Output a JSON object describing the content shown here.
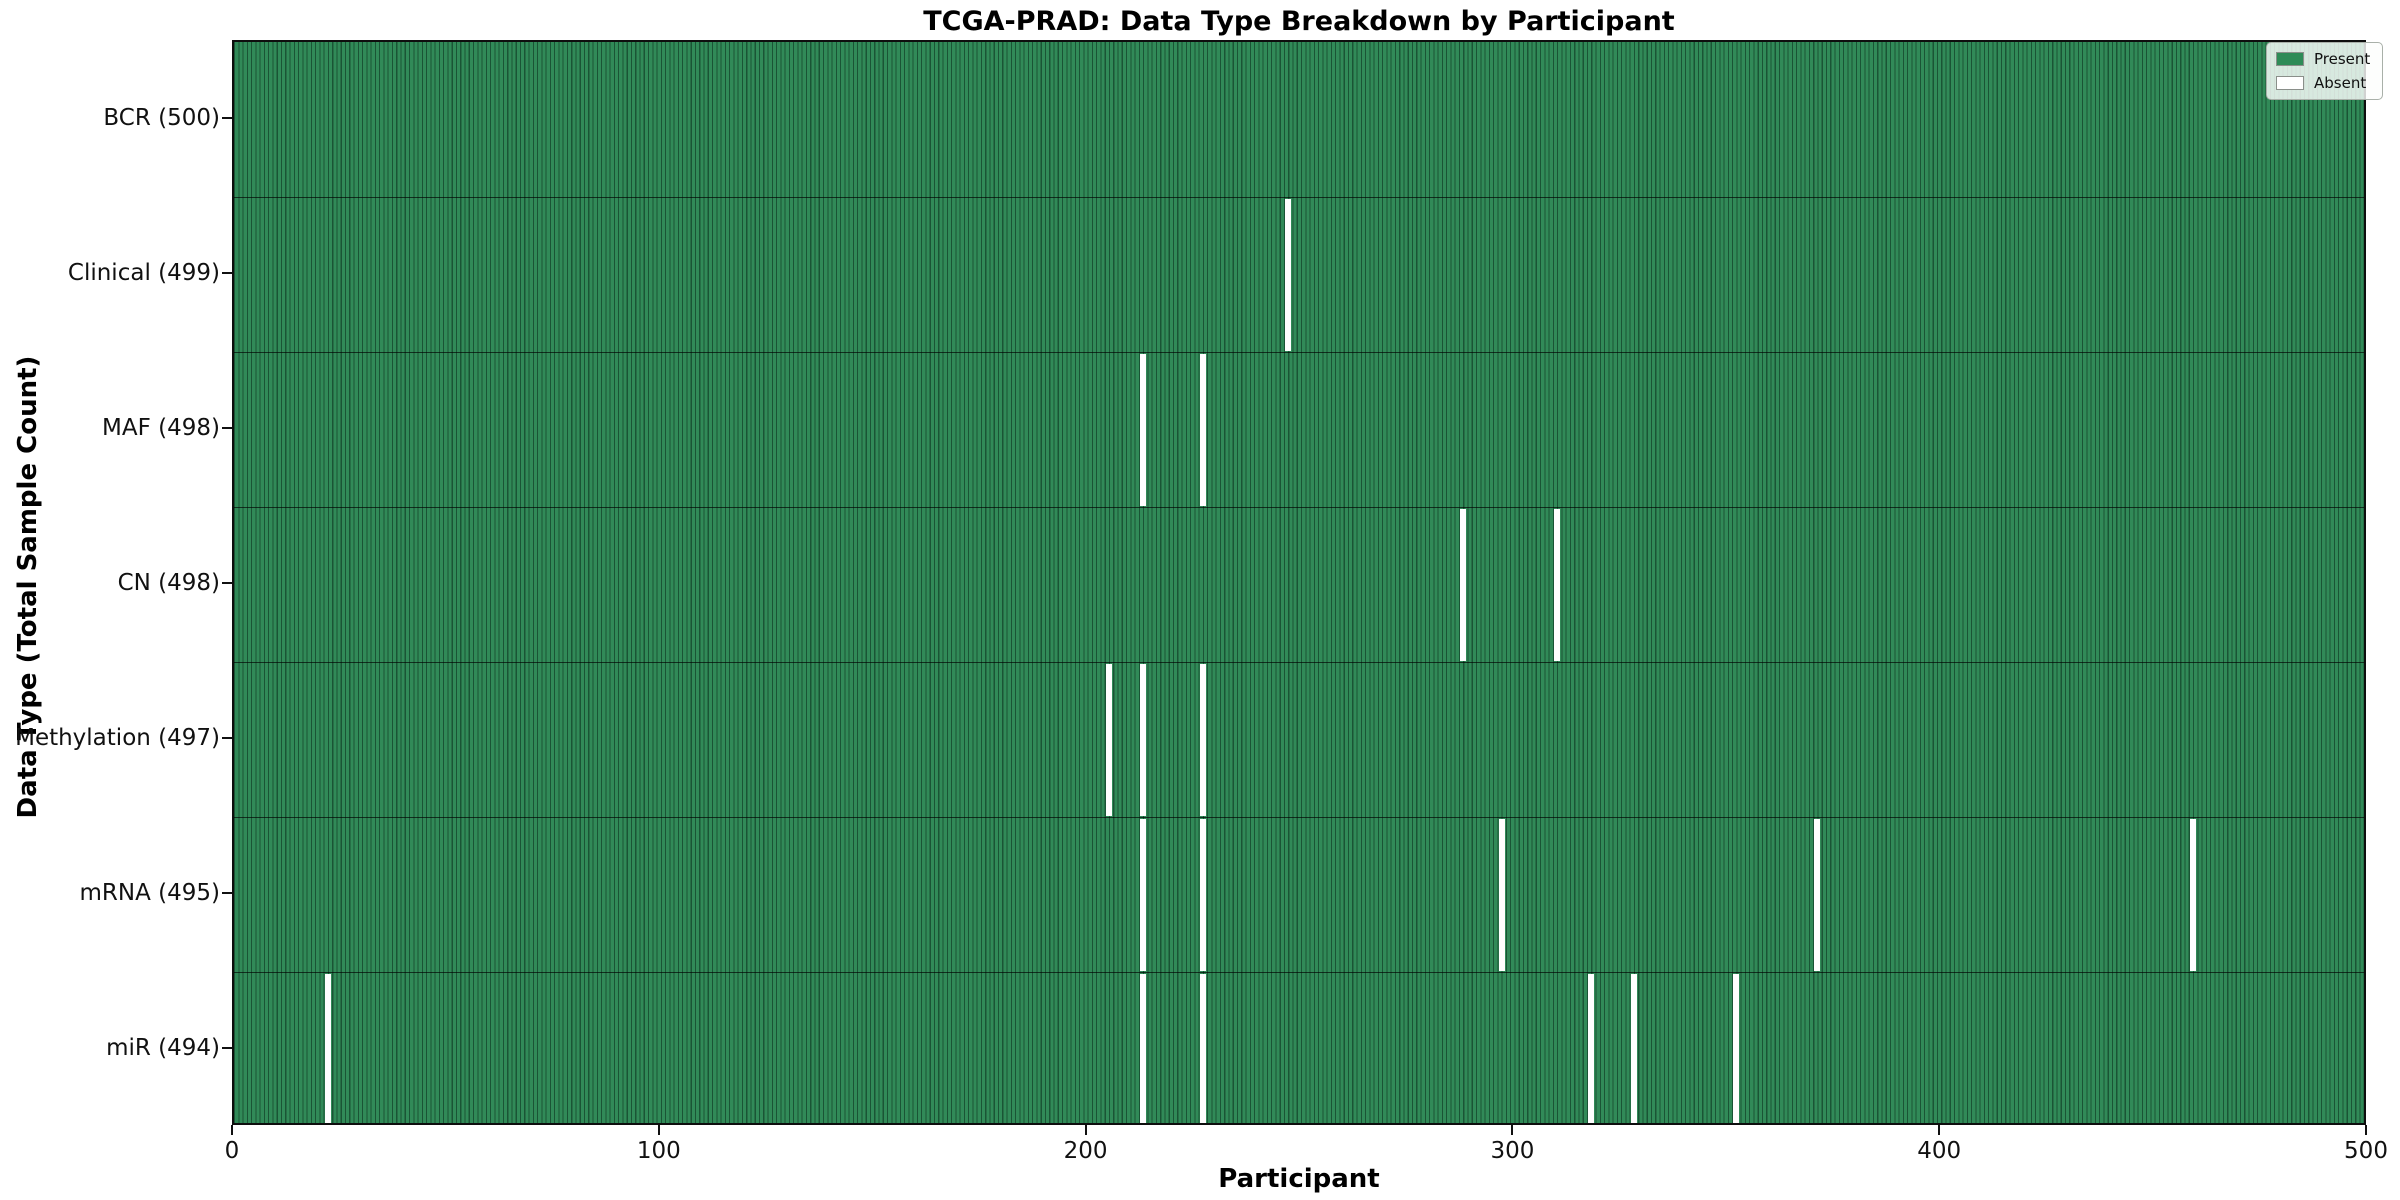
{
  "chart_data": {
    "type": "heatmap",
    "title": "TCGA-PRAD: Data Type Breakdown by Participant",
    "xlabel": "Participant",
    "ylabel": "Data Type (Total Sample Count)",
    "xlim": [
      0,
      500
    ],
    "x_ticks": [
      0,
      100,
      200,
      300,
      400,
      500
    ],
    "n_participants": 500,
    "grid": false,
    "legend_position": "upper right",
    "legend": [
      {
        "label": "Present",
        "color": "#2e8b57"
      },
      {
        "label": "Absent",
        "color": "#ffffff"
      }
    ],
    "rows": [
      {
        "label": "BCR (500)",
        "data_type": "BCR",
        "total_sample_count": 500,
        "absent_participants": []
      },
      {
        "label": "Clinical (499)",
        "data_type": "Clinical",
        "total_sample_count": 499,
        "absent_participants": [
          247
        ]
      },
      {
        "label": "MAF (498)",
        "data_type": "MAF",
        "total_sample_count": 498,
        "absent_participants": [
          213,
          227
        ]
      },
      {
        "label": "CN (498)",
        "data_type": "CN",
        "total_sample_count": 498,
        "absent_participants": [
          288,
          310
        ]
      },
      {
        "label": "Methylation (497)",
        "data_type": "Methylation",
        "total_sample_count": 497,
        "absent_participants": [
          205,
          213,
          227
        ]
      },
      {
        "label": "mRNA (495)",
        "data_type": "mRNA",
        "total_sample_count": 495,
        "absent_participants": [
          213,
          227,
          297,
          371,
          459
        ]
      },
      {
        "label": "miR (494)",
        "data_type": "miR",
        "total_sample_count": 494,
        "absent_participants": [
          22,
          213,
          227,
          318,
          328,
          352
        ]
      }
    ],
    "colors": {
      "present_fill": "#318a58",
      "cell_edge": "#14482c",
      "absent_fill": "#ffffff",
      "text": "#111111"
    }
  }
}
